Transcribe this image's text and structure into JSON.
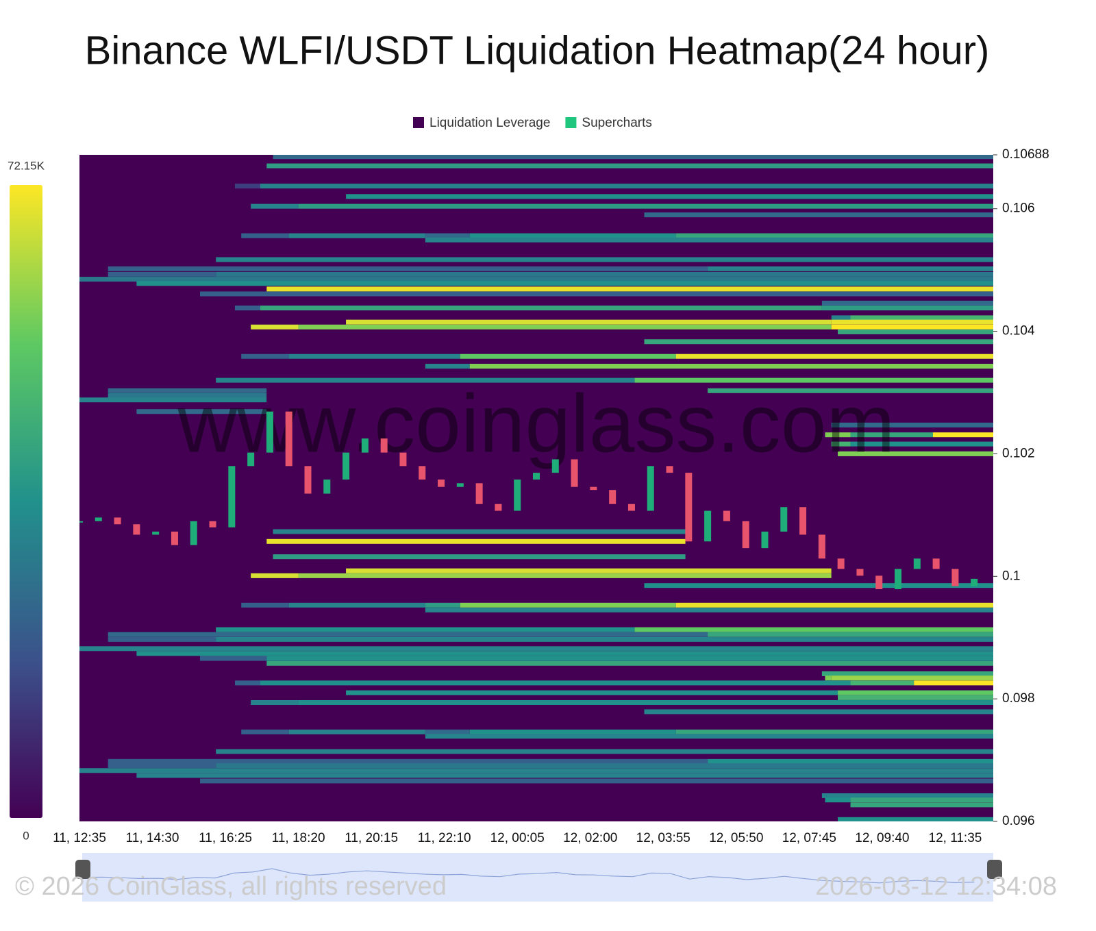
{
  "chart_data": {
    "type": "heatmap",
    "title": "Binance WLFI/USDT Liquidation Heatmap(24 hour)",
    "legend": [
      {
        "name": "Liquidation Leverage",
        "color": "#440154"
      },
      {
        "name": "Supercharts",
        "color": "#1fc77e"
      }
    ],
    "watermark": "www.coinglass.com",
    "copyright": "© 2026 CoinGlass, all rights reserved",
    "timestamp": "2026-03-12 12:34:08",
    "colorscale": [
      "#440154",
      "#3b528b",
      "#21918c",
      "#5ec962",
      "#fde725"
    ],
    "clim": [
      0,
      72150
    ],
    "cticks": [
      {
        "value": 72150,
        "label": "72.15K"
      },
      0
    ],
    "xlim": [
      "11, 12:35",
      "12, 12:35"
    ],
    "xticks": [
      "11, 12:35",
      "11, 14:30",
      "11, 16:25",
      "11, 18:20",
      "11, 20:15",
      "11, 22:10",
      "12, 00:05",
      "12, 02:00",
      "12, 03:55",
      "12, 05:50",
      "12, 07:45",
      "12, 09:40",
      "12, 11:35"
    ],
    "ylim": [
      0.096,
      0.10688
    ],
    "yticks": [
      0.096,
      0.098,
      0.1,
      0.102,
      0.104,
      0.106,
      0.10688
    ],
    "up_color": "#1fae7a",
    "down_color": "#e8546b",
    "bands": [
      {
        "price": 0.10685,
        "segments": [
          [
            "11, 17:40",
            25000
          ]
        ]
      },
      {
        "price": 0.1067,
        "segments": [
          [
            "11, 17:30",
            40000
          ]
        ]
      },
      {
        "price": 0.10637,
        "segments": [
          [
            "11, 16:40",
            14000
          ],
          [
            "11, 17:20",
            32000
          ]
        ]
      },
      {
        "price": 0.1062,
        "segments": [
          [
            "11, 19:35",
            36000
          ]
        ]
      },
      {
        "price": 0.10604,
        "segments": [
          [
            "11, 17:05",
            32000
          ],
          [
            "11, 18:20",
            40000
          ]
        ]
      },
      {
        "price": 0.1059,
        "segments": [
          [
            "12, 03:25",
            25000
          ]
        ]
      },
      {
        "price": 0.10556,
        "segments": [
          [
            "11, 16:50",
            22000
          ],
          [
            "11, 18:05",
            32000
          ],
          [
            "11, 21:40",
            25000
          ],
          [
            "11, 22:50",
            36000
          ],
          [
            "12, 04:15",
            43000
          ]
        ]
      },
      {
        "price": 0.10549,
        "segments": [
          [
            "11, 21:40",
            32000
          ]
        ]
      },
      {
        "price": 0.10517,
        "segments": [
          [
            "11, 16:10",
            32000
          ]
        ]
      },
      {
        "price": 0.10502,
        "segments": [
          [
            "11, 13:20",
            22000
          ],
          [
            "12, 05:05",
            32000
          ]
        ]
      },
      {
        "price": 0.10493,
        "segments": [
          [
            "11, 13:20",
            22000
          ],
          [
            "11, 16:10",
            29000
          ]
        ]
      },
      {
        "price": 0.10485,
        "segments": [
          [
            "11, 12:35",
            29000
          ]
        ]
      },
      {
        "price": 0.10478,
        "segments": [
          [
            "11, 14:05",
            36000
          ]
        ]
      },
      {
        "price": 0.10469,
        "segments": [
          [
            "11, 17:30",
            70000
          ]
        ]
      },
      {
        "price": 0.10461,
        "segments": [
          [
            "11, 15:45",
            22000
          ]
        ]
      },
      {
        "price": 0.10446,
        "segments": [
          [
            "12, 08:05",
            25000
          ]
        ]
      },
      {
        "price": 0.10438,
        "segments": [
          [
            "11, 16:40",
            22000
          ],
          [
            "11, 17:20",
            43000
          ],
          [
            "12, 08:05",
            40000
          ]
        ]
      },
      {
        "price": 0.10422,
        "segments": [
          [
            "12, 08:20",
            32000
          ],
          [
            "12, 08:50",
            47000
          ]
        ]
      },
      {
        "price": 0.10415,
        "segments": [
          [
            "11, 19:35",
            68000
          ],
          [
            "12, 08:20",
            70000
          ]
        ]
      },
      {
        "price": 0.10407,
        "segments": [
          [
            "11, 17:05",
            68000
          ],
          [
            "11, 18:20",
            58000
          ],
          [
            "12, 08:20",
            72150
          ]
        ]
      },
      {
        "price": 0.10399,
        "segments": [
          [
            "12, 08:30",
            43000
          ]
        ]
      },
      {
        "price": 0.10383,
        "segments": [
          [
            "12, 03:25",
            43000
          ]
        ]
      },
      {
        "price": 0.10359,
        "segments": [
          [
            "11, 16:50",
            22000
          ],
          [
            "11, 18:05",
            32000
          ],
          [
            "11, 22:35",
            54000
          ],
          [
            "12, 04:15",
            70000
          ]
        ]
      },
      {
        "price": 0.10343,
        "segments": [
          [
            "11, 21:40",
            32000
          ],
          [
            "11, 22:50",
            58000
          ]
        ]
      },
      {
        "price": 0.1032,
        "segments": [
          [
            "11, 16:10",
            32000
          ],
          [
            "12, 03:10",
            54000
          ]
        ]
      },
      {
        "price": 0.10303,
        "segments": [
          [
            "11, 13:20",
            25000
          ],
          [
            "11, 17:30",
            0
          ],
          [
            "12, 05:05",
            43000
          ]
        ]
      },
      {
        "price": 0.10295,
        "segments": [
          [
            "11, 13:20",
            29000
          ],
          [
            "11, 17:30",
            0
          ]
        ]
      },
      {
        "price": 0.10288,
        "segments": [
          [
            "11, 12:35",
            32000
          ],
          [
            "11, 17:30",
            0
          ]
        ]
      },
      {
        "price": 0.10269,
        "segments": [
          [
            "11, 14:05",
            25000
          ],
          [
            "11, 17:30",
            0
          ]
        ]
      },
      {
        "price": 0.10247,
        "segments": [
          [
            "12, 08:20",
            25000
          ]
        ]
      },
      {
        "price": 0.10231,
        "segments": [
          [
            "12, 08:10",
            58000
          ],
          [
            "12, 08:50",
            43000
          ],
          [
            "12, 11:00",
            72000
          ]
        ]
      },
      {
        "price": 0.10216,
        "segments": [
          [
            "12, 08:20",
            47000
          ],
          [
            "12, 08:50",
            36000
          ]
        ]
      },
      {
        "price": 0.102,
        "segments": [
          [
            "12, 08:30",
            58000
          ]
        ]
      },
      {
        "price": 0.10073,
        "segments": [
          [
            "11, 17:40",
            32000
          ],
          [
            "12, 04:30",
            0
          ]
        ]
      },
      {
        "price": 0.10057,
        "segments": [
          [
            "11, 17:30",
            70000
          ],
          [
            "12, 04:30",
            0
          ]
        ]
      },
      {
        "price": 0.10032,
        "segments": [
          [
            "11, 17:40",
            40000
          ],
          [
            "12, 04:30",
            0
          ]
        ]
      },
      {
        "price": 0.10009,
        "segments": [
          [
            "11, 19:35",
            68000
          ],
          [
            "12, 08:20",
            0
          ]
        ]
      },
      {
        "price": 0.10001,
        "segments": [
          [
            "11, 17:05",
            68000
          ],
          [
            "11, 18:20",
            61000
          ],
          [
            "12, 08:20",
            0
          ]
        ]
      },
      {
        "price": 0.09985,
        "segments": [
          [
            "12, 03:25",
            36000
          ]
        ]
      },
      {
        "price": 0.09953,
        "segments": [
          [
            "11, 16:50",
            22000
          ],
          [
            "11, 18:05",
            32000
          ],
          [
            "11, 21:40",
            40000
          ],
          [
            "11, 22:35",
            58000
          ],
          [
            "12, 04:15",
            70000
          ]
        ]
      },
      {
        "price": 0.09945,
        "segments": [
          [
            "11, 21:40",
            32000
          ]
        ]
      },
      {
        "price": 0.09913,
        "segments": [
          [
            "11, 16:10",
            36000
          ],
          [
            "12, 03:10",
            54000
          ]
        ]
      },
      {
        "price": 0.09905,
        "segments": [
          [
            "11, 13:20",
            25000
          ],
          [
            "12, 05:05",
            43000
          ]
        ]
      },
      {
        "price": 0.09897,
        "segments": [
          [
            "11, 13:20",
            22000
          ],
          [
            "11, 16:10",
            32000
          ]
        ]
      },
      {
        "price": 0.09882,
        "segments": [
          [
            "11, 12:35",
            32000
          ]
        ]
      },
      {
        "price": 0.09874,
        "segments": [
          [
            "11, 14:05",
            36000
          ]
        ]
      },
      {
        "price": 0.09866,
        "segments": [
          [
            "11, 15:45",
            22000
          ],
          [
            "11, 17:30",
            36000
          ]
        ]
      },
      {
        "price": 0.09858,
        "segments": [
          [
            "11, 17:30",
            43000
          ]
        ]
      },
      {
        "price": 0.09841,
        "segments": [
          [
            "12, 08:05",
            43000
          ]
        ]
      },
      {
        "price": 0.09834,
        "segments": [
          [
            "12, 08:10",
            58000
          ],
          [
            "12, 08:20",
            61000
          ]
        ]
      },
      {
        "price": 0.09826,
        "segments": [
          [
            "11, 16:40",
            22000
          ],
          [
            "11, 17:20",
            36000
          ],
          [
            "12, 08:50",
            47000
          ],
          [
            "12, 10:30",
            72000
          ]
        ]
      },
      {
        "price": 0.0981,
        "segments": [
          [
            "11, 19:35",
            36000
          ],
          [
            "12, 08:30",
            54000
          ]
        ]
      },
      {
        "price": 0.09802,
        "segments": [
          [
            "12, 08:30",
            47000
          ]
        ]
      },
      {
        "price": 0.09794,
        "segments": [
          [
            "11, 17:05",
            32000
          ],
          [
            "11, 18:20",
            36000
          ]
        ]
      },
      {
        "price": 0.09779,
        "segments": [
          [
            "12, 03:25",
            32000
          ]
        ]
      },
      {
        "price": 0.09746,
        "segments": [
          [
            "11, 16:50",
            22000
          ],
          [
            "11, 18:05",
            32000
          ],
          [
            "11, 21:40",
            25000
          ],
          [
            "11, 22:50",
            36000
          ],
          [
            "12, 04:15",
            43000
          ]
        ]
      },
      {
        "price": 0.09739,
        "segments": [
          [
            "11, 21:40",
            32000
          ]
        ]
      },
      {
        "price": 0.09714,
        "segments": [
          [
            "11, 16:10",
            32000
          ]
        ]
      },
      {
        "price": 0.09698,
        "segments": [
          [
            "11, 13:20",
            22000
          ],
          [
            "12, 05:05",
            36000
          ]
        ]
      },
      {
        "price": 0.09691,
        "segments": [
          [
            "11, 13:20",
            22000
          ],
          [
            "11, 16:10",
            29000
          ]
        ]
      },
      {
        "price": 0.09683,
        "segments": [
          [
            "11, 12:35",
            32000
          ]
        ]
      },
      {
        "price": 0.09675,
        "segments": [
          [
            "11, 14:05",
            32000
          ]
        ]
      },
      {
        "price": 0.09666,
        "segments": [
          [
            "11, 15:45",
            22000
          ]
        ]
      },
      {
        "price": 0.09642,
        "segments": [
          [
            "12, 08:05",
            32000
          ]
        ]
      },
      {
        "price": 0.09635,
        "segments": [
          [
            "12, 08:10",
            36000
          ],
          [
            "12, 08:50",
            43000
          ]
        ]
      },
      {
        "price": 0.09627,
        "segments": [
          [
            "12, 08:50",
            43000
          ]
        ]
      },
      {
        "price": 0.09603,
        "segments": [
          [
            "12, 08:30",
            36000
          ]
        ]
      }
    ],
    "candles": {
      "x": [
        "11, 12:35",
        "11, 13:05",
        "11, 13:35",
        "11, 14:05",
        "11, 14:35",
        "11, 15:05",
        "11, 15:35",
        "11, 16:05",
        "11, 16:35",
        "11, 17:05",
        "11, 17:35",
        "11, 18:05",
        "11, 18:35",
        "11, 19:05",
        "11, 19:35",
        "11, 20:05",
        "11, 20:35",
        "11, 21:05",
        "11, 21:35",
        "11, 22:05",
        "11, 22:35",
        "11, 23:05",
        "11, 23:35",
        "12, 00:05",
        "12, 00:35",
        "12, 01:05",
        "12, 01:35",
        "12, 02:05",
        "12, 02:35",
        "12, 03:05",
        "12, 03:35",
        "12, 04:05",
        "12, 04:35",
        "12, 05:05",
        "12, 05:35",
        "12, 06:05",
        "12, 06:35",
        "12, 07:05",
        "12, 07:35",
        "12, 08:05",
        "12, 08:35",
        "12, 09:05",
        "12, 09:35",
        "12, 10:05",
        "12, 10:35",
        "12, 11:05",
        "12, 11:35",
        "12, 12:05"
      ],
      "close": [
        0.1009,
        0.10096,
        0.10085,
        0.10068,
        0.10073,
        0.10051,
        0.1009,
        0.1008,
        0.1018,
        0.10202,
        0.10269,
        0.1018,
        0.10135,
        0.10158,
        0.10202,
        0.10225,
        0.10202,
        0.1018,
        0.10158,
        0.10146,
        0.10152,
        0.10118,
        0.10107,
        0.10158,
        0.10169,
        0.10191,
        0.10146,
        0.10141,
        0.10118,
        0.10107,
        0.1018,
        0.10169,
        0.10057,
        0.10107,
        0.1009,
        0.10046,
        0.10073,
        0.10113,
        0.10068,
        0.10029,
        0.10012,
        0.10001,
        0.09979,
        0.10012,
        0.10029,
        0.10012,
        0.09984,
        0.09996
      ]
    }
  }
}
